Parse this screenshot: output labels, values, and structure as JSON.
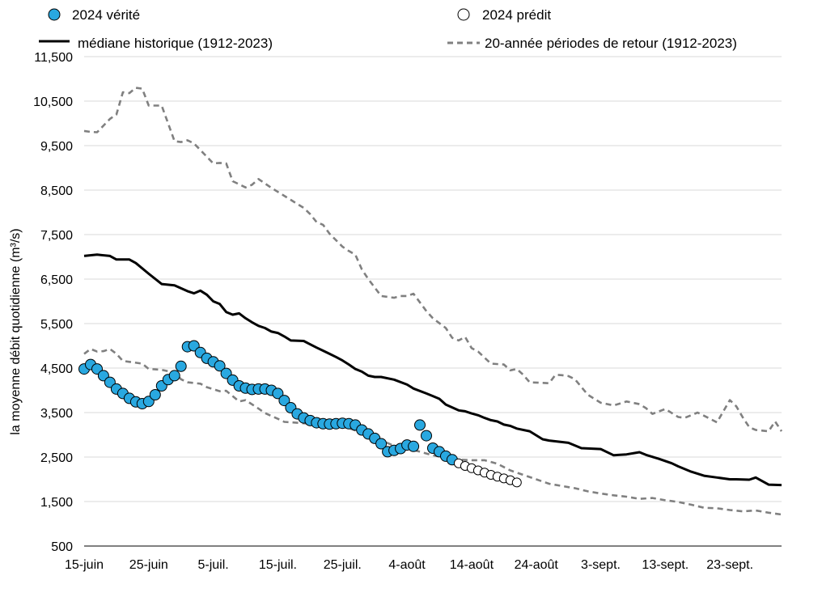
{
  "chart_data": {
    "type": "line",
    "ylabel": "la moyenne débit quotidienne (m³/s)",
    "ylim": [
      500,
      11500
    ],
    "yticks": [
      "500",
      "1,500",
      "2,500",
      "3,500",
      "4,500",
      "5,500",
      "6,500",
      "7,500",
      "8,500",
      "9,500",
      "10,500",
      "11,500"
    ],
    "xticks": [
      "15-juin",
      "25-juin",
      "5-juil.",
      "15-juil.",
      "25-juil.",
      "4-août",
      "14-août",
      "24-août",
      "3-sept.",
      "13-sept.",
      "23-sept."
    ],
    "x_start": "15-juin",
    "x_days": 108,
    "grid": "horizontal",
    "legend": [
      "2024 vérité",
      "2024 prédit",
      "médiane historique (1912-2023)",
      "20-année périodes de retour (1912-2023)"
    ],
    "series": [
      {
        "name": "2024 vérité",
        "kind": "markers-filled",
        "color": "#29a8e0",
        "x": [
          0,
          1,
          2,
          3,
          4,
          5,
          6,
          7,
          8,
          9,
          10,
          11,
          12,
          13,
          14,
          15,
          16,
          17,
          18,
          19,
          20,
          21,
          22,
          23,
          24,
          25,
          26,
          27,
          28,
          29,
          30,
          31,
          32,
          33,
          34,
          35,
          36,
          37,
          38,
          39,
          40,
          41,
          42,
          43,
          44,
          45,
          46,
          47,
          48,
          49,
          50,
          51,
          52,
          53,
          54,
          55,
          56,
          57
        ],
        "y": [
          4480,
          4580,
          4480,
          4330,
          4180,
          4030,
          3930,
          3820,
          3740,
          3700,
          3750,
          3900,
          4100,
          4240,
          4330,
          4540,
          4980,
          5000,
          4850,
          4720,
          4640,
          4550,
          4380,
          4230,
          4100,
          4050,
          4020,
          4030,
          4030,
          4000,
          3930,
          3770,
          3610,
          3470,
          3380,
          3320,
          3270,
          3250,
          3240,
          3250,
          3260,
          3250,
          3220,
          3110,
          3020,
          2920,
          2800,
          2620,
          2650,
          2690,
          2770,
          2740,
          3220,
          2980,
          2700,
          2620,
          2520,
          2440
        ]
      },
      {
        "name": "2024 prédit",
        "kind": "markers-open",
        "color": "#000000",
        "x": [
          58,
          59,
          60,
          61,
          62,
          63,
          64,
          65,
          66,
          67
        ],
        "y": [
          2360,
          2300,
          2250,
          2200,
          2150,
          2100,
          2060,
          2020,
          1980,
          1930
        ]
      },
      {
        "name": "médiane historique (1912-2023)",
        "kind": "line-solid",
        "color": "#000000",
        "x": [
          0,
          2,
          4,
          5,
          7,
          8,
          10,
          12,
          14,
          16,
          17,
          18,
          19,
          20,
          21,
          22,
          23,
          24,
          25,
          26,
          27,
          28,
          29,
          30,
          31,
          32,
          34,
          36,
          37,
          38,
          39,
          40,
          41,
          42,
          43,
          44,
          45,
          46,
          48,
          50,
          51,
          53,
          54,
          55,
          56,
          58,
          59,
          60,
          61,
          62,
          63,
          64,
          65,
          66,
          67,
          69,
          71,
          72,
          75,
          77,
          80,
          82,
          84,
          86,
          87,
          89,
          91,
          92,
          94,
          96,
          98,
          100,
          101,
          103,
          104,
          106,
          108
        ],
        "y": [
          7020,
          7050,
          7020,
          6940,
          6940,
          6860,
          6620,
          6390,
          6360,
          6230,
          6180,
          6240,
          6150,
          6000,
          5940,
          5760,
          5700,
          5730,
          5620,
          5530,
          5450,
          5400,
          5320,
          5290,
          5210,
          5120,
          5110,
          4960,
          4890,
          4820,
          4750,
          4670,
          4580,
          4480,
          4420,
          4330,
          4300,
          4300,
          4240,
          4130,
          4040,
          3930,
          3870,
          3810,
          3680,
          3550,
          3530,
          3480,
          3440,
          3380,
          3330,
          3300,
          3230,
          3200,
          3140,
          3080,
          2900,
          2870,
          2820,
          2700,
          2680,
          2540,
          2560,
          2610,
          2550,
          2460,
          2360,
          2290,
          2170,
          2080,
          2040,
          2000,
          2000,
          1990,
          2040,
          1880,
          1870
        ]
      },
      {
        "name": "20-année périodes de retour (1912-2023) — haut",
        "kind": "line-dashed",
        "color": "#808080",
        "x": [
          0,
          1,
          2,
          4,
          5,
          6,
          7,
          8,
          9,
          10,
          12,
          13,
          14,
          15,
          16,
          17,
          18,
          20,
          21,
          22,
          23,
          24,
          25,
          26,
          27,
          29,
          31,
          34,
          35,
          36,
          37,
          38,
          40,
          41,
          42,
          43,
          44,
          46,
          48,
          49,
          50,
          51,
          53,
          54,
          56,
          57,
          58,
          59,
          60,
          61,
          63,
          65,
          66,
          67,
          68,
          69,
          72,
          73,
          74,
          75,
          76,
          78,
          80,
          82,
          84,
          86,
          87,
          88,
          90,
          92,
          93,
          95,
          96,
          98,
          100,
          101,
          102,
          103,
          104,
          106,
          107,
          108
        ],
        "y": [
          9830,
          9810,
          9800,
          10100,
          10200,
          10700,
          10680,
          10800,
          10780,
          10400,
          10400,
          10000,
          9600,
          9580,
          9620,
          9550,
          9400,
          9100,
          9110,
          9100,
          8700,
          8630,
          8560,
          8620,
          8750,
          8550,
          8370,
          8100,
          7960,
          7780,
          7720,
          7520,
          7230,
          7130,
          7050,
          6720,
          6500,
          6120,
          6080,
          6120,
          6120,
          6170,
          5780,
          5620,
          5400,
          5180,
          5120,
          5200,
          4950,
          4870,
          4600,
          4580,
          4450,
          4480,
          4350,
          4180,
          4160,
          4350,
          4340,
          4320,
          4250,
          3900,
          3720,
          3660,
          3750,
          3690,
          3600,
          3470,
          3580,
          3400,
          3380,
          3500,
          3430,
          3280,
          3780,
          3640,
          3390,
          3170,
          3110,
          3080,
          3300,
          3080
        ]
      },
      {
        "name": "20-année périodes de retour (1912-2023) — bas",
        "kind": "line-dashed",
        "color": "#808080",
        "x": [
          0,
          1,
          2,
          3,
          4,
          5,
          6,
          7,
          9,
          10,
          11,
          12,
          14,
          15,
          16,
          18,
          19,
          21,
          22,
          24,
          25,
          27,
          28,
          30,
          31,
          34,
          36,
          38,
          40,
          41,
          42,
          44,
          46,
          48,
          50,
          52,
          54,
          56,
          57,
          58,
          60,
          62,
          64,
          66,
          68,
          70,
          72,
          74,
          76,
          78,
          80,
          82,
          84,
          86,
          88,
          90,
          92,
          94,
          96,
          98,
          100,
          102,
          104,
          106,
          108
        ],
        "y": [
          4820,
          4930,
          4870,
          4880,
          4930,
          4820,
          4660,
          4640,
          4600,
          4480,
          4470,
          4460,
          4400,
          4250,
          4180,
          4150,
          4070,
          3980,
          3990,
          3750,
          3780,
          3590,
          3490,
          3360,
          3290,
          3260,
          3240,
          3220,
          3180,
          3150,
          3100,
          2970,
          2880,
          2750,
          2700,
          2620,
          2540,
          2490,
          2450,
          2440,
          2430,
          2430,
          2350,
          2200,
          2100,
          2000,
          1900,
          1850,
          1800,
          1730,
          1680,
          1640,
          1610,
          1560,
          1580,
          1530,
          1490,
          1430,
          1360,
          1350,
          1310,
          1280,
          1300,
          1250,
          1210
        ]
      }
    ]
  }
}
